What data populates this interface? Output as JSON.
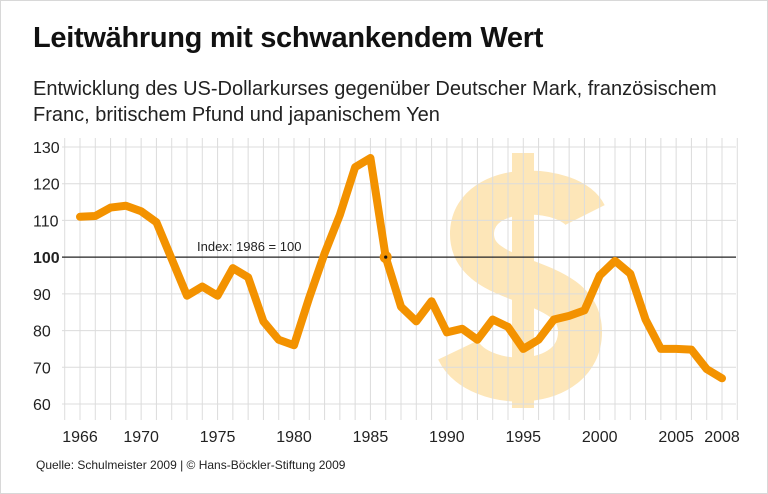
{
  "chart_data": {
    "type": "line",
    "title": "Leitwährung mit schwankendem Wert",
    "subtitle": "Entwicklung des US-Dollarkurses gegenüber Deutscher Mark, französischem Franc, britischem Pfund und japanischem Yen",
    "x": [
      1966,
      1967,
      1968,
      1969,
      1970,
      1971,
      1972,
      1973,
      1974,
      1975,
      1976,
      1977,
      1978,
      1979,
      1980,
      1981,
      1982,
      1983,
      1984,
      1985,
      1986,
      1987,
      1988,
      1989,
      1990,
      1991,
      1992,
      1993,
      1994,
      1995,
      1996,
      1997,
      1998,
      1999,
      2000,
      2001,
      2002,
      2003,
      2004,
      2005,
      2006,
      2007,
      2008
    ],
    "series": [
      {
        "values": [
          111,
          111.2,
          113.5,
          114,
          112.5,
          109.5,
          99.5,
          89.5,
          92,
          89.5,
          97,
          94.5,
          82.5,
          77.5,
          76,
          89,
          101,
          111.5,
          124.5,
          127,
          100,
          86.5,
          82.5,
          88,
          79.5,
          80.5,
          77.5,
          83,
          81,
          75,
          77.5,
          83,
          84,
          85.5,
          95,
          99,
          95.5,
          83,
          75,
          75,
          74.8,
          69.5,
          67
        ]
      }
    ],
    "xticks": [
      "1966",
      "1970",
      "1975",
      "1980",
      "1985",
      "1990",
      "1995",
      "2000",
      "2005",
      "2008"
    ],
    "yticks": [
      "60",
      "70",
      "80",
      "90",
      "100",
      "110",
      "120",
      "130"
    ],
    "xlim": [
      1966,
      2008
    ],
    "ylim": [
      60,
      130
    ],
    "grid": true,
    "reference_line": {
      "value": 100,
      "label": "Index: 1986 = 100",
      "marker_year": 1986
    },
    "colors": {
      "line": "#f39200",
      "watermark": "#fde6b8",
      "grid": "#dcdcdc"
    },
    "watermark_symbol": "$"
  },
  "source": "Quelle: Schulmeister 2009 | © Hans-Böckler-Stiftung 2009"
}
